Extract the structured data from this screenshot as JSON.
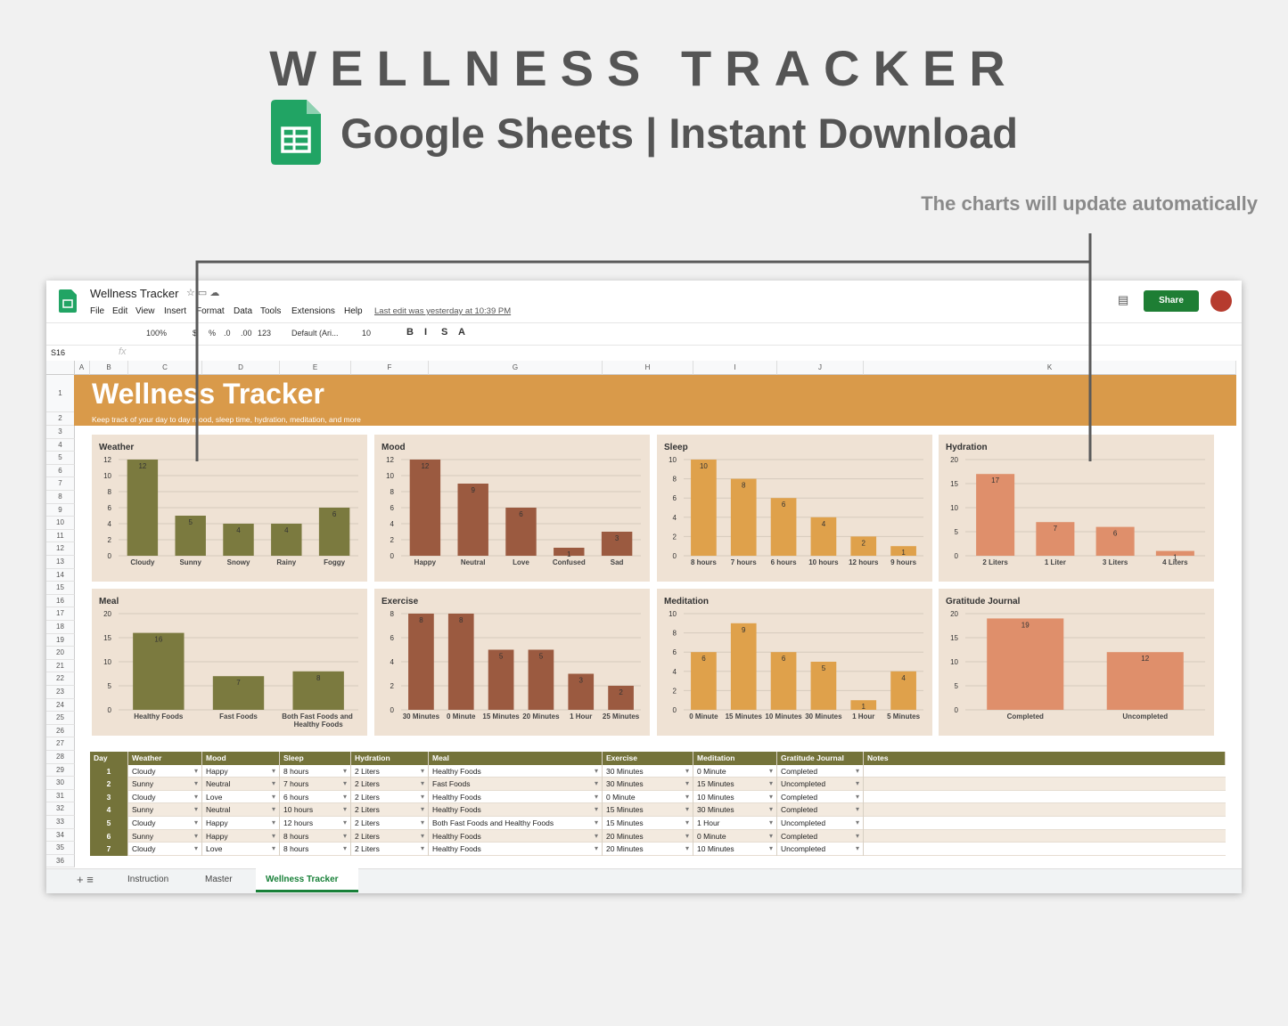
{
  "header": {
    "title": "WELLNESS TRACKER",
    "subtitle": "Google Sheets | Instant Download",
    "note": "The charts will update automatically"
  },
  "app": {
    "doc_title": "Wellness Tracker",
    "menu": [
      "File",
      "Edit",
      "View",
      "Insert",
      "Format",
      "Data",
      "Tools",
      "Extensions",
      "Help"
    ],
    "last_edit": "Last edit was yesterday at 10:39 PM",
    "share": "Share",
    "toolbar": [
      "100%",
      "$",
      "%",
      ".0",
      ".00",
      "123",
      "Default (Ari...",
      "10",
      "B",
      "I",
      "S",
      "A"
    ],
    "cell_ref": "S16"
  },
  "sheet": {
    "columns": [
      "A",
      "B",
      "C",
      "D",
      "E",
      "F",
      "G",
      "H",
      "I",
      "J",
      "K"
    ],
    "row_numbers": [
      1,
      2,
      3,
      4,
      5,
      6,
      7,
      8,
      9,
      10,
      11,
      12,
      13,
      14,
      15,
      16,
      17,
      18,
      19,
      20,
      21,
      22,
      23,
      24,
      25,
      26,
      27,
      28,
      29,
      30,
      31,
      32,
      33,
      34,
      35,
      36
    ],
    "banner_title": "Wellness Tracker",
    "banner_subtitle": "Keep track of your day to day mood, sleep time, hydration, meditation, and more"
  },
  "chart_data": [
    {
      "type": "bar",
      "title": "Weather",
      "categories": [
        "Cloudy",
        "Sunny",
        "Snowy",
        "Rainy",
        "Foggy"
      ],
      "values": [
        12,
        5,
        4,
        4,
        6
      ],
      "color": "#7b7a3f",
      "ylim": [
        0,
        12
      ],
      "yticks": [
        0,
        2,
        4,
        6,
        8,
        10,
        12
      ],
      "grid": true
    },
    {
      "type": "bar",
      "title": "Mood",
      "categories": [
        "Happy",
        "Neutral",
        "Love",
        "Confused",
        "Sad"
      ],
      "values": [
        12,
        9,
        6,
        1,
        3
      ],
      "color": "#9b5a40",
      "ylim": [
        0,
        12
      ],
      "yticks": [
        0,
        2,
        4,
        6,
        8,
        10,
        12
      ],
      "grid": true
    },
    {
      "type": "bar",
      "title": "Sleep",
      "categories": [
        "8 hours",
        "7 hours",
        "6 hours",
        "10 hours",
        "12 hours",
        "9 hours"
      ],
      "values": [
        10,
        8,
        6,
        4,
        2,
        1
      ],
      "color": "#dfa14b",
      "ylim": [
        0,
        10
      ],
      "yticks": [
        0,
        2,
        4,
        6,
        8,
        10
      ],
      "grid": true
    },
    {
      "type": "bar",
      "title": "Hydration",
      "categories": [
        "2 Liters",
        "1 Liter",
        "3 Liters",
        "4 Liters"
      ],
      "values": [
        17,
        7,
        6,
        1
      ],
      "color": "#df8f6b",
      "ylim": [
        0,
        20
      ],
      "yticks": [
        0,
        5,
        10,
        15,
        20
      ],
      "grid": true
    },
    {
      "type": "bar",
      "title": "Meal",
      "categories": [
        "Healthy Foods",
        "Fast Foods",
        "Both Fast Foods and Healthy Foods"
      ],
      "values": [
        16,
        7,
        8
      ],
      "color": "#7b7a3f",
      "ylim": [
        0,
        20
      ],
      "yticks": [
        0,
        5,
        10,
        15,
        20
      ],
      "grid": true
    },
    {
      "type": "bar",
      "title": "Exercise",
      "categories": [
        "30 Minutes",
        "0 Minute",
        "15 Minutes",
        "20 Minutes",
        "1 Hour",
        "25 Minutes"
      ],
      "values": [
        8,
        8,
        5,
        5,
        3,
        2
      ],
      "color": "#9b5a40",
      "ylim": [
        0,
        8
      ],
      "yticks": [
        0,
        2,
        4,
        6,
        8
      ],
      "grid": true
    },
    {
      "type": "bar",
      "title": "Meditation",
      "categories": [
        "0 Minute",
        "15 Minutes",
        "10 Minutes",
        "30 Minutes",
        "1 Hour",
        "5 Minutes"
      ],
      "values": [
        6,
        9,
        6,
        5,
        1,
        4
      ],
      "color": "#dfa14b",
      "ylim": [
        0,
        10
      ],
      "yticks": [
        0,
        2,
        4,
        6,
        8,
        10
      ],
      "grid": true
    },
    {
      "type": "bar",
      "title": "Gratitude Journal",
      "categories": [
        "Completed",
        "Uncompleted"
      ],
      "values": [
        19,
        12
      ],
      "color": "#df8f6b",
      "ylim": [
        0,
        20
      ],
      "yticks": [
        0,
        5,
        10,
        15,
        20
      ],
      "grid": true
    }
  ],
  "table": {
    "header": [
      "Day",
      "Weather",
      "Mood",
      "Sleep",
      "Hydration",
      "Meal",
      "Exercise",
      "Meditation",
      "Gratitude Journal",
      "Notes"
    ],
    "rows": [
      [
        1,
        "Cloudy",
        "Happy",
        "8 hours",
        "2 Liters",
        "Healthy Foods",
        "30 Minutes",
        "0 Minute",
        "Completed"
      ],
      [
        2,
        "Sunny",
        "Neutral",
        "7 hours",
        "2 Liters",
        "Fast Foods",
        "30 Minutes",
        "15 Minutes",
        "Uncompleted"
      ],
      [
        3,
        "Cloudy",
        "Love",
        "6 hours",
        "2 Liters",
        "Healthy Foods",
        "0 Minute",
        "10 Minutes",
        "Completed"
      ],
      [
        4,
        "Sunny",
        "Neutral",
        "10 hours",
        "2 Liters",
        "Healthy Foods",
        "15 Minutes",
        "30 Minutes",
        "Completed"
      ],
      [
        5,
        "Cloudy",
        "Happy",
        "12 hours",
        "2 Liters",
        "Both Fast Foods and Healthy Foods",
        "15 Minutes",
        "1 Hour",
        "Uncompleted"
      ],
      [
        6,
        "Sunny",
        "Happy",
        "8 hours",
        "2 Liters",
        "Healthy Foods",
        "20 Minutes",
        "0 Minute",
        "Completed"
      ],
      [
        7,
        "Cloudy",
        "Love",
        "8 hours",
        "2 Liters",
        "Healthy Foods",
        "20 Minutes",
        "10 Minutes",
        "Uncompleted"
      ]
    ]
  },
  "tabs": [
    "Instruction",
    "Master",
    "Wellness Tracker"
  ]
}
